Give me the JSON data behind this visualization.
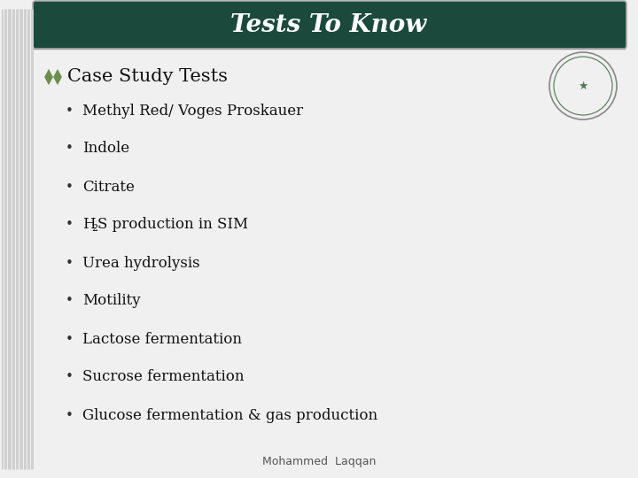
{
  "title": "Tests To Know",
  "title_bg_color": "#1b4a3c",
  "title_text_color": "#ffffff",
  "header_text": "Case Study Tests",
  "bullet_items": [
    "Methyl Red/ Voges Proskauer",
    "Indole",
    "Citrate",
    "H₂S production in SIM",
    "Urea hydrolysis",
    "Motility",
    "Lactose fermentation",
    "Sucrose fermentation",
    "Glucose fermentation & gas production"
  ],
  "footer_text": "Mohammed  Laqqan",
  "bg_color": "#f0f0f0",
  "stripe_color": "#d0d0d0",
  "header_color": "#111111",
  "bullet_color": "#111111",
  "diamond_color": "#6b8e4e",
  "footer_color": "#555555",
  "title_fontsize": 20,
  "header_fontsize": 15,
  "bullet_fontsize": 12,
  "footer_fontsize": 9
}
